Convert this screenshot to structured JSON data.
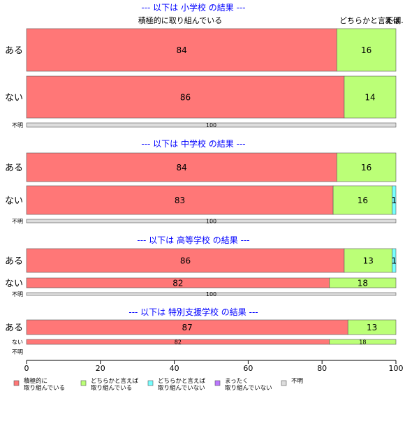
{
  "chart_data": {
    "type": "bar",
    "orientation": "horizontal",
    "stacked": true,
    "xlim": [
      0,
      100
    ],
    "x_ticks": [
      "0",
      "20",
      "40",
      "60",
      "80",
      "100"
    ],
    "top_labels": [
      "積極的に取り組んでいる",
      "どちらかと言えば",
      "まっ",
      "不明."
    ],
    "colors": [
      "#ff7777",
      "#bbff77",
      "#77ffff",
      "#bb77ff",
      "#dddddd"
    ],
    "title_color": "#0000ff",
    "legend": [
      {
        "line1": "積極的に",
        "line2": "取り組んでいる"
      },
      {
        "line1": "どちらかと言えば",
        "line2": "取り組んでいる"
      },
      {
        "line1": "どちらかと言えば",
        "line2": "取り組んでいない"
      },
      {
        "line1": "まったく",
        "line2": "取り組んでいない"
      },
      {
        "line1": "不明",
        "line2": ""
      }
    ],
    "panels": [
      {
        "title": "--- 以下は 小学校 の結果 ---",
        "rows": [
          {
            "label": "ある",
            "values": [
              84,
              16,
              0,
              0,
              0
            ],
            "value_labels": [
              "84",
              "16",
              "",
              "",
              ""
            ]
          },
          {
            "label": "ない",
            "values": [
              86,
              14,
              0,
              0,
              0
            ],
            "value_labels": [
              "86",
              "14",
              "",
              "",
              ""
            ]
          },
          {
            "label": "不明",
            "values": [
              0,
              0,
              0,
              0,
              100
            ],
            "value_labels": [
              "",
              "",
              "",
              "",
              "100"
            ]
          }
        ]
      },
      {
        "title": "--- 以下は 中学校 の結果 ---",
        "rows": [
          {
            "label": "ある",
            "values": [
              84,
              16,
              0,
              0,
              0
            ],
            "value_labels": [
              "84",
              "16",
              "",
              "",
              ""
            ]
          },
          {
            "label": "ない",
            "values": [
              83,
              16,
              1,
              0,
              0
            ],
            "value_labels": [
              "83",
              "16",
              "1",
              "",
              ""
            ]
          },
          {
            "label": "不明",
            "values": [
              0,
              0,
              0,
              0,
              100
            ],
            "value_labels": [
              "",
              "",
              "",
              "",
              "100"
            ]
          }
        ]
      },
      {
        "title": "--- 以下は 高等学校 の結果 ---",
        "rows": [
          {
            "label": "ある",
            "values": [
              86,
              13,
              1,
              0,
              0
            ],
            "value_labels": [
              "86",
              "13",
              "1",
              "",
              ""
            ]
          },
          {
            "label": "ない",
            "values": [
              82,
              18,
              0,
              0,
              0
            ],
            "value_labels": [
              "82",
              "18",
              "",
              "",
              ""
            ]
          },
          {
            "label": "不明",
            "values": [
              0,
              0,
              0,
              0,
              100
            ],
            "value_labels": [
              "",
              "",
              "",
              "",
              "100"
            ]
          }
        ]
      },
      {
        "title": "--- 以下は 特別支援学校 の結果 ---",
        "rows": [
          {
            "label": "ある",
            "values": [
              87,
              13,
              0,
              0,
              0
            ],
            "value_labels": [
              "87",
              "13",
              "",
              "",
              ""
            ]
          },
          {
            "label": "ない",
            "values": [
              82,
              18,
              0,
              0,
              0
            ],
            "value_labels": [
              "82",
              "18",
              "",
              "",
              ""
            ]
          },
          {
            "label": "不明",
            "values": [
              0,
              0,
              0,
              0,
              0
            ],
            "value_labels": [
              "",
              "",
              "",
              "",
              ""
            ]
          }
        ]
      }
    ]
  }
}
